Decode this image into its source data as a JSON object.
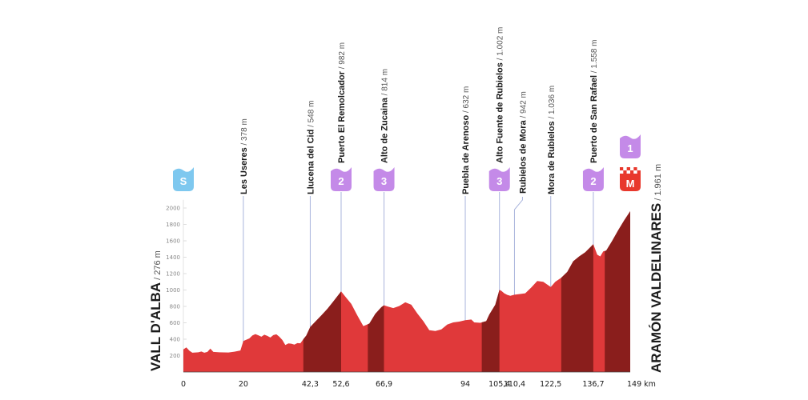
{
  "chart_data": {
    "type": "area",
    "colors": {
      "profile_light": "#e0393a",
      "profile_dark": "#8a1e1c",
      "guide_line": "#a9b4dc",
      "category_badge": "#c48ae8",
      "start_badge": "#7ec8ef",
      "finish_badge": "#e8382c"
    },
    "y_axis": {
      "ticks": [
        200,
        400,
        600,
        800,
        1000,
        1200,
        1400,
        1600,
        1800,
        2000
      ],
      "ylim": [
        0,
        2100
      ]
    },
    "x_axis": {
      "xlim": [
        0,
        149
      ],
      "ticks": [
        {
          "value": 0,
          "label": "0"
        },
        {
          "value": 20,
          "label": "20"
        },
        {
          "value": 42.3,
          "label": "42,3"
        },
        {
          "value": 52.6,
          "label": "52,6"
        },
        {
          "value": 66.9,
          "label": "66,9"
        },
        {
          "value": 94,
          "label": "94"
        },
        {
          "value": 105.4,
          "label": "105,4"
        },
        {
          "value": 110.4,
          "label": "110,4"
        },
        {
          "value": 122.5,
          "label": "122,5"
        },
        {
          "value": 136.7,
          "label": "136,7"
        },
        {
          "value": 149,
          "label": "149 km"
        }
      ]
    },
    "profile": [
      [
        0,
        276
      ],
      [
        1,
        300
      ],
      [
        2,
        260
      ],
      [
        3,
        235
      ],
      [
        5,
        240
      ],
      [
        6,
        250
      ],
      [
        7,
        235
      ],
      [
        8,
        245
      ],
      [
        9,
        285
      ],
      [
        10,
        245
      ],
      [
        12,
        240
      ],
      [
        15,
        238
      ],
      [
        17,
        248
      ],
      [
        19,
        262
      ],
      [
        20,
        378
      ],
      [
        22,
        410
      ],
      [
        23,
        445
      ],
      [
        24,
        462
      ],
      [
        25,
        448
      ],
      [
        26,
        430
      ],
      [
        27,
        455
      ],
      [
        28,
        440
      ],
      [
        29,
        420
      ],
      [
        30,
        450
      ],
      [
        31,
        460
      ],
      [
        32,
        430
      ],
      [
        33,
        390
      ],
      [
        34,
        330
      ],
      [
        35,
        348
      ],
      [
        36,
        345
      ],
      [
        37,
        335
      ],
      [
        38,
        352
      ],
      [
        39,
        350
      ],
      [
        40,
        400
      ],
      [
        41,
        445
      ],
      [
        42.3,
        548
      ],
      [
        44,
        615
      ],
      [
        46,
        690
      ],
      [
        48,
        770
      ],
      [
        50,
        860
      ],
      [
        52.6,
        982
      ],
      [
        54,
        920
      ],
      [
        56,
        830
      ],
      [
        58,
        690
      ],
      [
        60,
        560
      ],
      [
        62,
        590
      ],
      [
        64,
        710
      ],
      [
        66,
        790
      ],
      [
        66.9,
        814
      ],
      [
        68,
        800
      ],
      [
        70,
        780
      ],
      [
        72,
        805
      ],
      [
        74,
        850
      ],
      [
        76,
        820
      ],
      [
        78,
        715
      ],
      [
        80,
        620
      ],
      [
        82,
        510
      ],
      [
        84,
        500
      ],
      [
        86,
        520
      ],
      [
        88,
        580
      ],
      [
        90,
        605
      ],
      [
        92,
        615
      ],
      [
        94,
        632
      ],
      [
        96,
        640
      ],
      [
        97,
        605
      ],
      [
        99,
        600
      ],
      [
        101,
        620
      ],
      [
        102,
        700
      ],
      [
        104,
        820
      ],
      [
        105.4,
        1002
      ],
      [
        106,
        990
      ],
      [
        107,
        960
      ],
      [
        108,
        940
      ],
      [
        109,
        930
      ],
      [
        110.4,
        942
      ],
      [
        112,
        950
      ],
      [
        114,
        960
      ],
      [
        116,
        1030
      ],
      [
        118,
        1110
      ],
      [
        120,
        1100
      ],
      [
        122.5,
        1036
      ],
      [
        124,
        1100
      ],
      [
        126,
        1150
      ],
      [
        128,
        1220
      ],
      [
        130,
        1350
      ],
      [
        132,
        1410
      ],
      [
        134,
        1460
      ],
      [
        136.7,
        1558
      ],
      [
        138,
        1430
      ],
      [
        139,
        1410
      ],
      [
        140,
        1470
      ],
      [
        141,
        1480
      ],
      [
        143,
        1600
      ],
      [
        145,
        1730
      ],
      [
        147,
        1850
      ],
      [
        149,
        1961
      ]
    ],
    "dark_segments": [
      [
        40,
        52.6
      ],
      [
        61.5,
        66.9
      ],
      [
        99.5,
        105.4
      ],
      [
        126,
        136.7
      ],
      [
        140.5,
        149
      ]
    ],
    "points": [
      {
        "km": 0,
        "name": "VALL D'ALBA",
        "alt": "/ 276 m",
        "badge": "S",
        "type": "start"
      },
      {
        "km": 20,
        "name": "Les Useres",
        "alt": "/ 378 m"
      },
      {
        "km": 42.3,
        "name": "Llucena del Cid",
        "alt": "/ 548 m"
      },
      {
        "km": 52.6,
        "name": "Puerto El Remolcador",
        "alt": "/ 982 m",
        "badge": "2",
        "type": "climb"
      },
      {
        "km": 66.9,
        "name": "Alto de Zucaina",
        "alt": "/ 814 m",
        "badge": "3",
        "type": "climb"
      },
      {
        "km": 94,
        "name": "Puebla de Arenoso",
        "alt": "/ 632 m"
      },
      {
        "km": 105.4,
        "name": "Alto Fuente de Rubielos",
        "alt": "/ 1.002 m",
        "badge": "3",
        "type": "climb"
      },
      {
        "km": 110.4,
        "name": "Rubielos de Mora",
        "alt": "/ 942 m",
        "offset_label": true
      },
      {
        "km": 122.5,
        "name": "Mora de Rubielos",
        "alt": "/ 1.036 m"
      },
      {
        "km": 136.7,
        "name": "Puerto de San Rafael",
        "alt": "/ 1.558 m",
        "badge": "2",
        "type": "climb"
      },
      {
        "km": 149,
        "name": "ARAMÓN VALDELINARES",
        "alt": "/ 1.961 m",
        "badge": "1",
        "badge2": "M",
        "type": "finish"
      }
    ]
  }
}
